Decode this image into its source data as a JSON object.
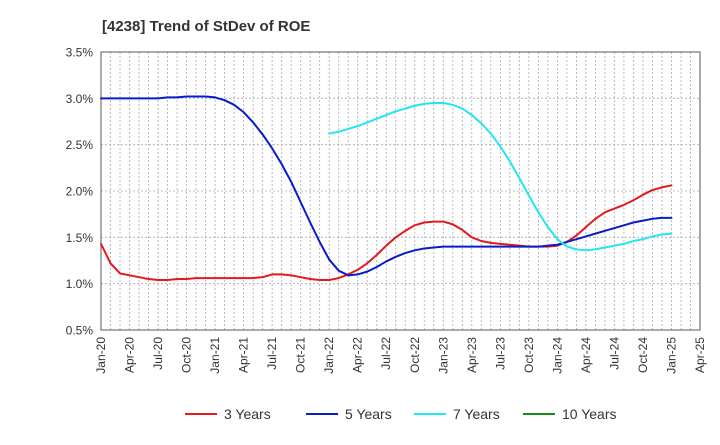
{
  "chart_data": {
    "type": "line",
    "title": "[4238]  Trend of StDev of ROE",
    "xlabel": "",
    "ylabel": "",
    "x_ticks": [
      "Jan-20",
      "Apr-20",
      "Jul-20",
      "Oct-20",
      "Jan-21",
      "Apr-21",
      "Jul-21",
      "Oct-21",
      "Jan-22",
      "Apr-22",
      "Jul-22",
      "Oct-22",
      "Jan-23",
      "Apr-23",
      "Jul-23",
      "Oct-23",
      "Jan-24",
      "Apr-24",
      "Jul-24",
      "Oct-24",
      "Jan-25",
      "Apr-25"
    ],
    "y_ticks": [
      "0.5%",
      "1.0%",
      "1.5%",
      "2.0%",
      "2.5%",
      "3.0%",
      "3.5%"
    ],
    "ylim": [
      0.5,
      3.5
    ],
    "grid": true,
    "legend_position": "bottom",
    "series": [
      {
        "name": "3 Years",
        "color": "#e31a1c",
        "points": [
          [
            "Jan-20",
            1.43
          ],
          [
            "Feb-20",
            1.22
          ],
          [
            "Mar-20",
            1.11
          ],
          [
            "Apr-20",
            1.09
          ],
          [
            "May-20",
            1.07
          ],
          [
            "Jun-20",
            1.05
          ],
          [
            "Jul-20",
            1.04
          ],
          [
            "Aug-20",
            1.04
          ],
          [
            "Sep-20",
            1.05
          ],
          [
            "Oct-20",
            1.05
          ],
          [
            "Nov-20",
            1.06
          ],
          [
            "Dec-20",
            1.06
          ],
          [
            "Jan-21",
            1.06
          ],
          [
            "Feb-21",
            1.06
          ],
          [
            "Mar-21",
            1.06
          ],
          [
            "Apr-21",
            1.06
          ],
          [
            "May-21",
            1.06
          ],
          [
            "Jun-21",
            1.07
          ],
          [
            "Jul-21",
            1.1
          ],
          [
            "Aug-21",
            1.1
          ],
          [
            "Sep-21",
            1.09
          ],
          [
            "Oct-21",
            1.07
          ],
          [
            "Nov-21",
            1.05
          ],
          [
            "Dec-21",
            1.04
          ],
          [
            "Jan-22",
            1.04
          ],
          [
            "Feb-22",
            1.06
          ],
          [
            "Mar-22",
            1.1
          ],
          [
            "Apr-22",
            1.15
          ],
          [
            "May-22",
            1.22
          ],
          [
            "Jun-22",
            1.31
          ],
          [
            "Jul-22",
            1.41
          ],
          [
            "Aug-22",
            1.5
          ],
          [
            "Sep-22",
            1.57
          ],
          [
            "Oct-22",
            1.63
          ],
          [
            "Nov-22",
            1.66
          ],
          [
            "Dec-22",
            1.67
          ],
          [
            "Jan-23",
            1.67
          ],
          [
            "Feb-23",
            1.64
          ],
          [
            "Mar-23",
            1.58
          ],
          [
            "Apr-23",
            1.5
          ],
          [
            "May-23",
            1.46
          ],
          [
            "Jun-23",
            1.44
          ],
          [
            "Jul-23",
            1.43
          ],
          [
            "Aug-23",
            1.42
          ],
          [
            "Sep-23",
            1.41
          ],
          [
            "Oct-23",
            1.4
          ],
          [
            "Nov-23",
            1.4
          ],
          [
            "Dec-23",
            1.4
          ],
          [
            "Jan-24",
            1.41
          ],
          [
            "Feb-24",
            1.45
          ],
          [
            "Mar-24",
            1.52
          ],
          [
            "Apr-24",
            1.61
          ],
          [
            "May-24",
            1.7
          ],
          [
            "Jun-24",
            1.77
          ],
          [
            "Jul-24",
            1.81
          ],
          [
            "Aug-24",
            1.85
          ],
          [
            "Sep-24",
            1.9
          ],
          [
            "Oct-24",
            1.96
          ],
          [
            "Nov-24",
            2.01
          ],
          [
            "Dec-24",
            2.04
          ],
          [
            "Jan-25",
            2.06
          ]
        ]
      },
      {
        "name": "5 Years",
        "color": "#0a1bc9",
        "points": [
          [
            "Jan-20",
            3.0
          ],
          [
            "Feb-20",
            3.0
          ],
          [
            "Mar-20",
            3.0
          ],
          [
            "Apr-20",
            3.0
          ],
          [
            "May-20",
            3.0
          ],
          [
            "Jun-20",
            3.0
          ],
          [
            "Jul-20",
            3.0
          ],
          [
            "Aug-20",
            3.01
          ],
          [
            "Sep-20",
            3.01
          ],
          [
            "Oct-20",
            3.02
          ],
          [
            "Nov-20",
            3.02
          ],
          [
            "Dec-20",
            3.02
          ],
          [
            "Jan-21",
            3.01
          ],
          [
            "Feb-21",
            2.98
          ],
          [
            "Mar-21",
            2.93
          ],
          [
            "Apr-21",
            2.85
          ],
          [
            "May-21",
            2.74
          ],
          [
            "Jun-21",
            2.61
          ],
          [
            "Jul-21",
            2.46
          ],
          [
            "Aug-21",
            2.29
          ],
          [
            "Sep-21",
            2.1
          ],
          [
            "Oct-21",
            1.88
          ],
          [
            "Nov-21",
            1.66
          ],
          [
            "Dec-21",
            1.45
          ],
          [
            "Jan-22",
            1.26
          ],
          [
            "Feb-22",
            1.14
          ],
          [
            "Mar-22",
            1.09
          ],
          [
            "Apr-22",
            1.1
          ],
          [
            "May-22",
            1.13
          ],
          [
            "Jun-22",
            1.18
          ],
          [
            "Jul-22",
            1.24
          ],
          [
            "Aug-22",
            1.29
          ],
          [
            "Sep-22",
            1.33
          ],
          [
            "Oct-22",
            1.36
          ],
          [
            "Nov-22",
            1.38
          ],
          [
            "Dec-22",
            1.39
          ],
          [
            "Jan-23",
            1.4
          ],
          [
            "Feb-23",
            1.4
          ],
          [
            "Mar-23",
            1.4
          ],
          [
            "Apr-23",
            1.4
          ],
          [
            "May-23",
            1.4
          ],
          [
            "Jun-23",
            1.4
          ],
          [
            "Jul-23",
            1.4
          ],
          [
            "Aug-23",
            1.4
          ],
          [
            "Sep-23",
            1.4
          ],
          [
            "Oct-23",
            1.4
          ],
          [
            "Nov-23",
            1.4
          ],
          [
            "Dec-23",
            1.41
          ],
          [
            "Jan-24",
            1.42
          ],
          [
            "Feb-24",
            1.45
          ],
          [
            "Mar-24",
            1.48
          ],
          [
            "Apr-24",
            1.51
          ],
          [
            "May-24",
            1.54
          ],
          [
            "Jun-24",
            1.57
          ],
          [
            "Jul-24",
            1.6
          ],
          [
            "Aug-24",
            1.63
          ],
          [
            "Sep-24",
            1.66
          ],
          [
            "Oct-24",
            1.68
          ],
          [
            "Nov-24",
            1.7
          ],
          [
            "Dec-24",
            1.71
          ],
          [
            "Jan-25",
            1.71
          ]
        ]
      },
      {
        "name": "7 Years",
        "color": "#22e5f2",
        "points": [
          [
            "Jan-22",
            2.62
          ],
          [
            "Feb-22",
            2.64
          ],
          [
            "Mar-22",
            2.67
          ],
          [
            "Apr-22",
            2.7
          ],
          [
            "May-22",
            2.74
          ],
          [
            "Jun-22",
            2.78
          ],
          [
            "Jul-22",
            2.82
          ],
          [
            "Aug-22",
            2.86
          ],
          [
            "Sep-22",
            2.89
          ],
          [
            "Oct-22",
            2.92
          ],
          [
            "Nov-22",
            2.94
          ],
          [
            "Dec-22",
            2.95
          ],
          [
            "Jan-23",
            2.95
          ],
          [
            "Feb-23",
            2.93
          ],
          [
            "Mar-23",
            2.89
          ],
          [
            "Apr-23",
            2.82
          ],
          [
            "May-23",
            2.73
          ],
          [
            "Jun-23",
            2.62
          ],
          [
            "Jul-23",
            2.48
          ],
          [
            "Aug-23",
            2.32
          ],
          [
            "Sep-23",
            2.14
          ],
          [
            "Oct-23",
            1.95
          ],
          [
            "Nov-23",
            1.77
          ],
          [
            "Dec-23",
            1.61
          ],
          [
            "Jan-24",
            1.48
          ],
          [
            "Feb-24",
            1.4
          ],
          [
            "Mar-24",
            1.37
          ],
          [
            "Apr-24",
            1.36
          ],
          [
            "May-24",
            1.37
          ],
          [
            "Jun-24",
            1.39
          ],
          [
            "Jul-24",
            1.41
          ],
          [
            "Aug-24",
            1.43
          ],
          [
            "Sep-24",
            1.46
          ],
          [
            "Oct-24",
            1.48
          ],
          [
            "Nov-24",
            1.51
          ],
          [
            "Dec-24",
            1.53
          ],
          [
            "Jan-25",
            1.54
          ]
        ]
      },
      {
        "name": "10 Years",
        "color": "#1a8a1a",
        "points": []
      }
    ]
  }
}
